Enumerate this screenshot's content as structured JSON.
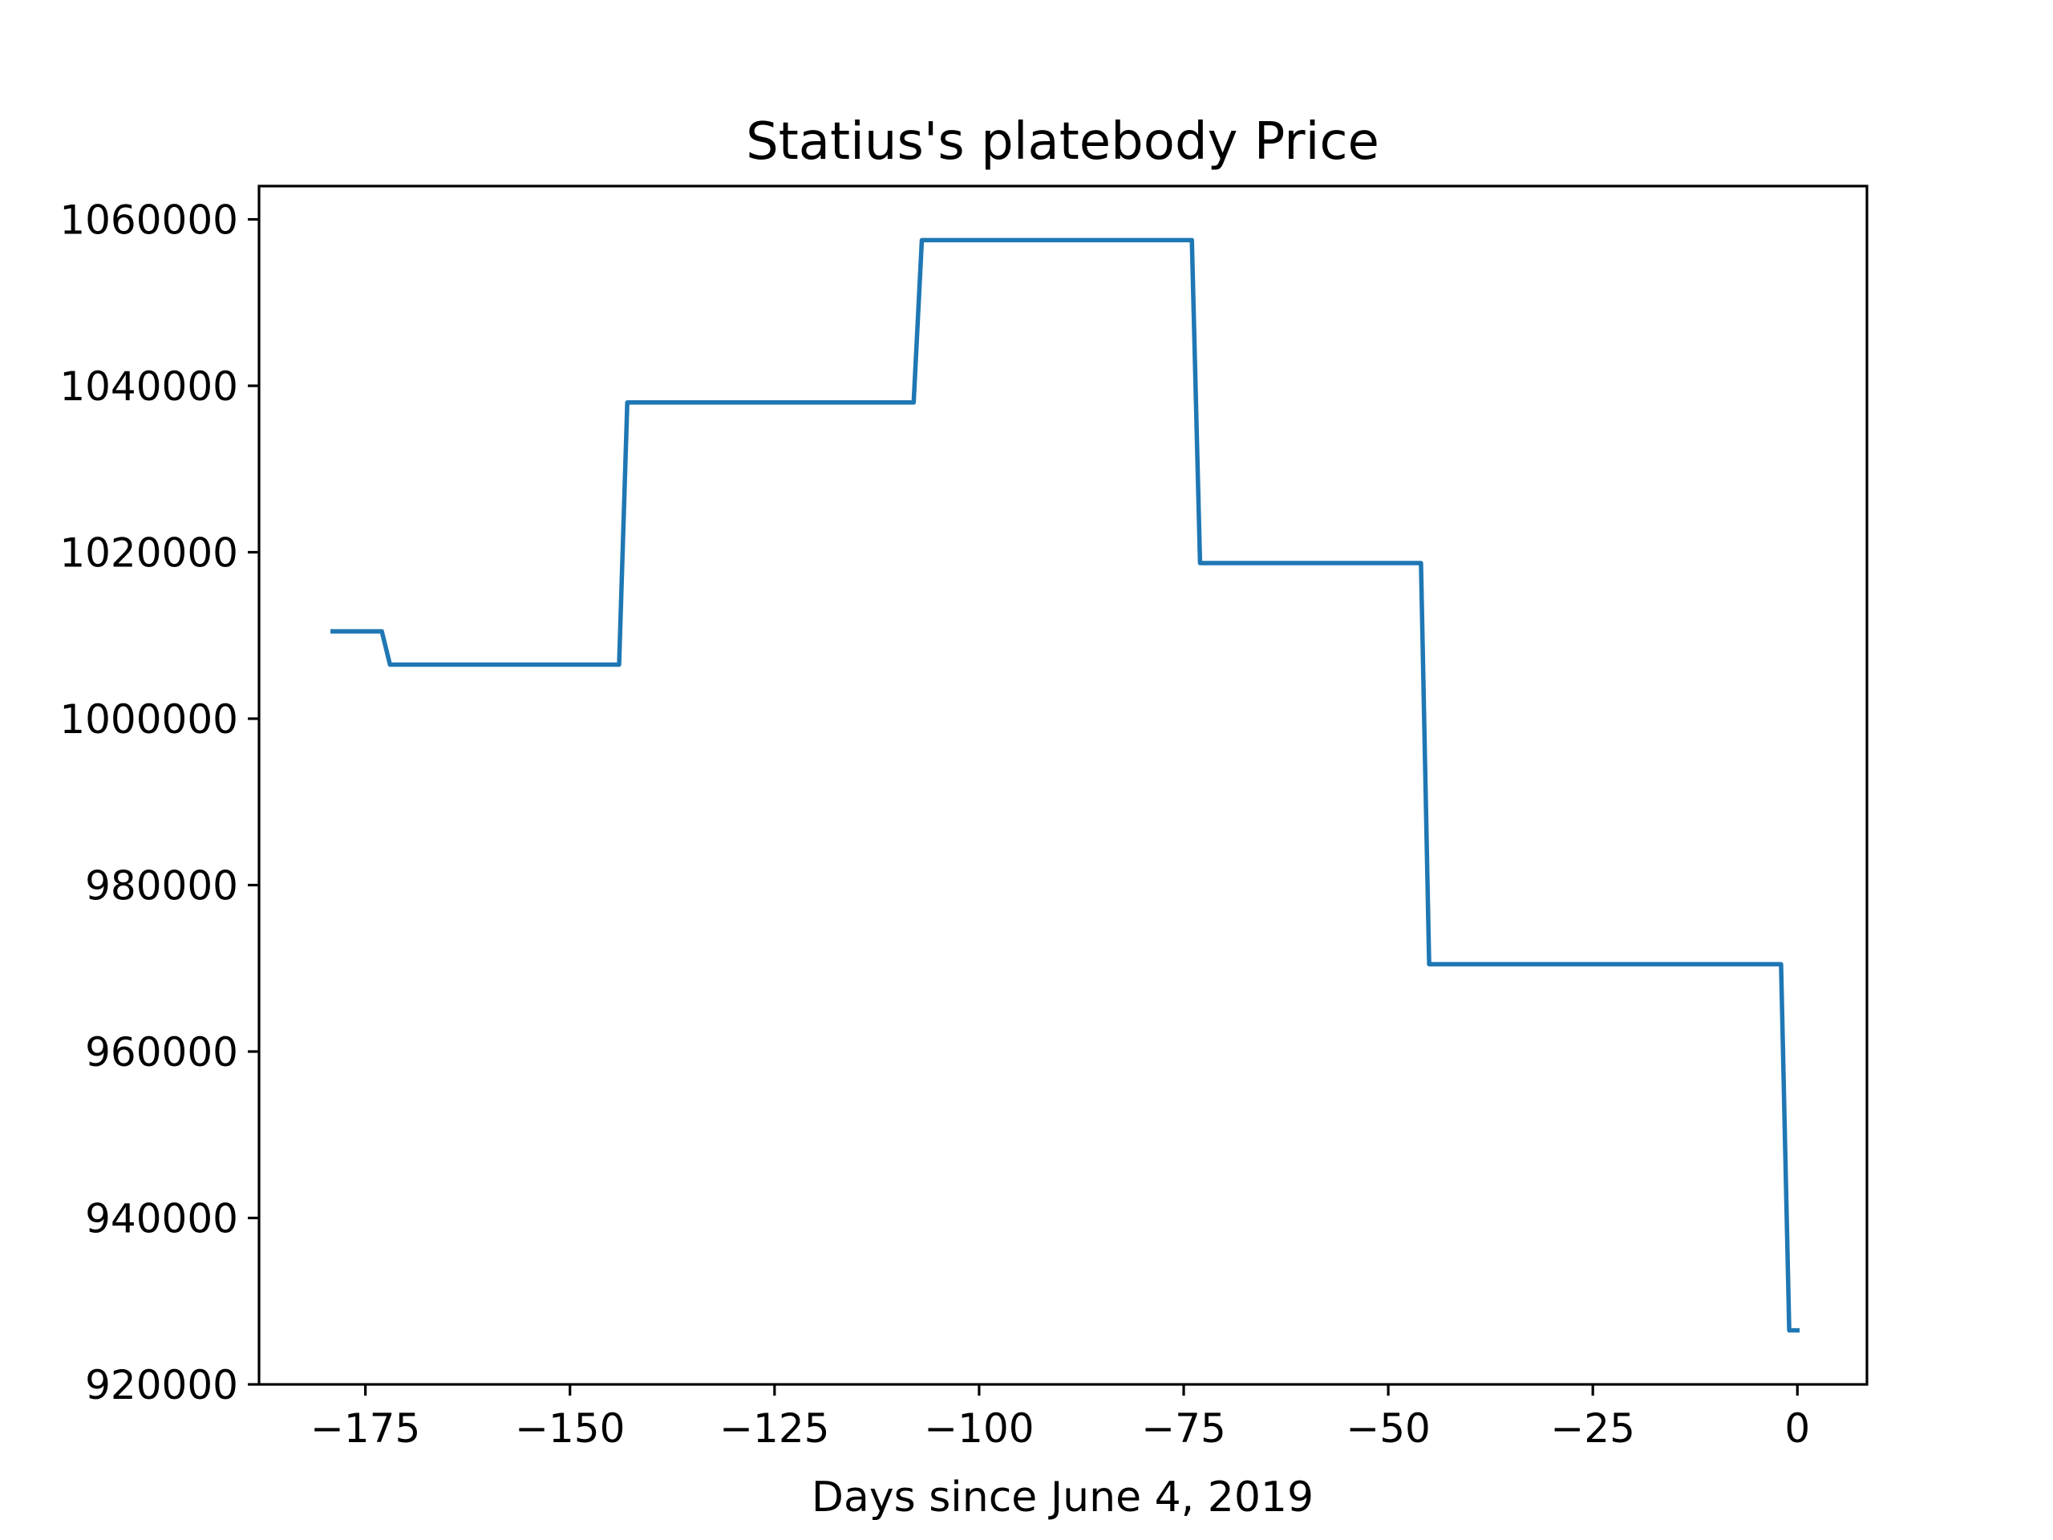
{
  "chart_data": {
    "type": "line",
    "title": "Statius's platebody Price",
    "xlabel": "Days since June 4, 2019",
    "ylabel": "",
    "xlim": [
      -188,
      8.5
    ],
    "ylim": [
      920000,
      1064000
    ],
    "xticks": [
      -175,
      -150,
      -125,
      -100,
      -75,
      -50,
      -25,
      0
    ],
    "xtick_labels": [
      "−175",
      "−150",
      "−125",
      "−100",
      "−75",
      "−50",
      "−25",
      "0"
    ],
    "yticks": [
      920000,
      940000,
      960000,
      980000,
      1000000,
      1020000,
      1040000,
      1060000
    ],
    "ytick_labels": [
      "920000",
      "940000",
      "960000",
      "980000",
      "1000000",
      "1020000",
      "1040000",
      "1060000"
    ],
    "grid": false,
    "series": [
      {
        "color": "#1f77b4",
        "x": [
          -179,
          -173,
          -172,
          -144,
          -143,
          -108,
          -107,
          -74,
          -73,
          -46,
          -45,
          -2,
          -1,
          0
        ],
        "y": [
          1010500,
          1010500,
          1006500,
          1006500,
          1038000,
          1038000,
          1057500,
          1057500,
          1018700,
          1018700,
          970500,
          970500,
          926500,
          926500
        ]
      }
    ]
  }
}
